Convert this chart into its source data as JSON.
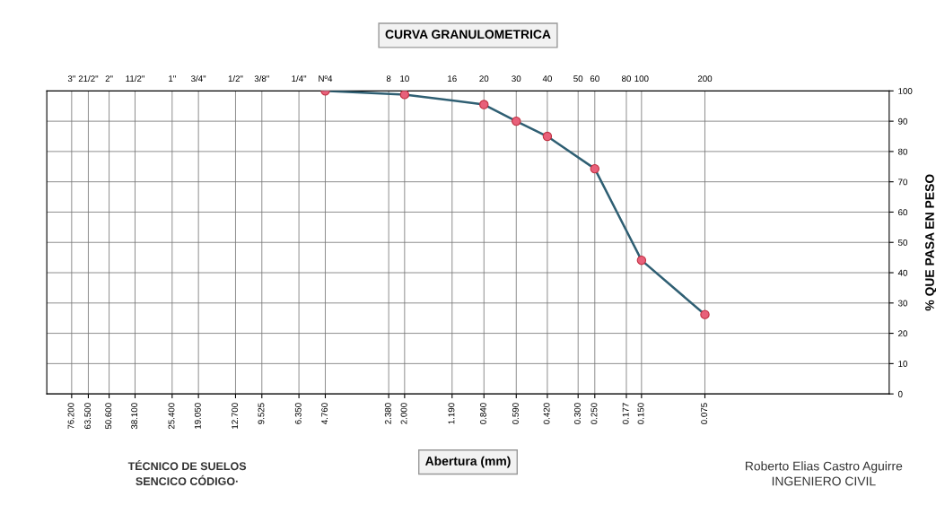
{
  "chart_data": {
    "type": "line",
    "title": "CURVA GRANULOMETRICA",
    "xlabel": "Abertura (mm)",
    "ylabel": "% QUE PASA EN PESO",
    "log": "x",
    "grid": true,
    "legend": false,
    "marker": "circle",
    "line_style": "solid",
    "xlim": [
      100,
      0.01
    ],
    "xticks": [
      {
        "value": 76.2,
        "label": "76.200"
      },
      {
        "value": 63.5,
        "label": "63.500"
      },
      {
        "value": 50.6,
        "label": "50.600"
      },
      {
        "value": 38.1,
        "label": "38.100"
      },
      {
        "value": 25.4,
        "label": "25.400"
      },
      {
        "value": 19.05,
        "label": "19.050"
      },
      {
        "value": 12.7,
        "label": "12.700"
      },
      {
        "value": 9.525,
        "label": "9.525"
      },
      {
        "value": 6.35,
        "label": "6.350"
      },
      {
        "value": 4.76,
        "label": "4.760"
      },
      {
        "value": 2.38,
        "label": "2.380"
      },
      {
        "value": 2.0,
        "label": "2.000"
      },
      {
        "value": 1.19,
        "label": "1.190"
      },
      {
        "value": 0.84,
        "label": "0.840"
      },
      {
        "value": 0.59,
        "label": "0.590"
      },
      {
        "value": 0.42,
        "label": "0.420"
      },
      {
        "value": 0.3,
        "label": "0.300"
      },
      {
        "value": 0.25,
        "label": "0.250"
      },
      {
        "value": 0.177,
        "label": "0.177"
      },
      {
        "value": 0.15,
        "label": "0.150"
      },
      {
        "value": 0.075,
        "label": "0.075"
      }
    ],
    "ylim": [
      0,
      100
    ],
    "yticks": [
      0,
      10,
      20,
      30,
      40,
      50,
      60,
      70,
      80,
      90,
      100
    ],
    "series": [
      {
        "color": "#2f5f73",
        "colors": [
          "#e8607a",
          "#e8607a",
          "#e8607a",
          "#e8607a",
          "#e8607a",
          "#e8607a",
          "#e8607a",
          "#e8607a"
        ],
        "x": [
          4.76,
          2.0,
          0.84,
          0.59,
          0.42,
          0.25,
          0.15,
          0.075
        ],
        "values": [
          100,
          98.8,
          95.5,
          90,
          85,
          74.3,
          44.1,
          26.2
        ]
      }
    ],
    "annotations": [
      "3\"",
      "21/2\"",
      "2\"",
      "11/2\"",
      "1\"",
      "3/4\"",
      "1/2\"",
      "3/8\"",
      "1/4\"",
      "Nº4",
      "8",
      "10",
      "16",
      "20",
      "30",
      "40",
      "50",
      "60",
      "80",
      "100",
      "200",
      "TÉCNICO DE SUELOS",
      "SENCICO CÓDIGO·",
      "Roberto Elias Castro Aguirre",
      "INGENIERO CIVIL"
    ]
  }
}
